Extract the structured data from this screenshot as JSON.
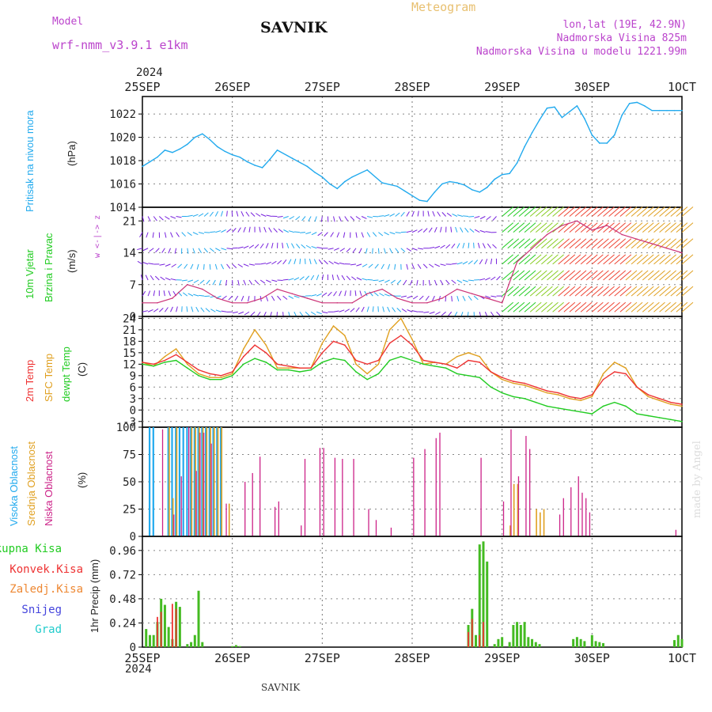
{
  "header": {
    "model_label": "Model",
    "model_name": "wrf-nmm_v3.9.1 e1km",
    "title": "SAVNIK",
    "chart_kind": "Meteogram",
    "lonlat": "lon,lat (19E, 42.9N)",
    "elevation": "Nadmorska Visina 825m",
    "model_elevation": "Nadmorska Visina u modelu 1221.99m",
    "year_top": "2024",
    "year_bottom": "2024",
    "footer_title": "SAVNIK",
    "credit": "made by Angel"
  },
  "colors": {
    "pressure": "#22aaee",
    "temp2m": "#ee3333",
    "sfc": "#e0a020",
    "dewpt": "#22cc22",
    "high": "#22aaee",
    "mid": "#e0a020",
    "low": "#cc2288",
    "total": "#44bb22",
    "convective": "#ee3333",
    "freezing": "#ee8833",
    "snow": "#4444dd",
    "hail": "#22cccc",
    "label_purple": "#bb44cc",
    "label_orange": "#e8c070",
    "label_blue": "#22aaee",
    "label_green": "#22cc22"
  },
  "x_axis": {
    "labels": [
      "25SEP",
      "26SEP",
      "27SEP",
      "28SEP",
      "29SEP",
      "30SEP",
      "1OCT"
    ],
    "range_hours": [
      0,
      144
    ]
  },
  "chart_data": [
    {
      "type": "line",
      "name_labels": [
        "Pritisak na nivou mora",
        "(hPa)"
      ],
      "ylim": [
        1014,
        1023.5
      ],
      "yticks": [
        1014,
        1016,
        1018,
        1020,
        1022
      ],
      "x": [
        0,
        2,
        4,
        6,
        8,
        10,
        12,
        14,
        16,
        18,
        20,
        22,
        24,
        26,
        28,
        30,
        32,
        34,
        36,
        40,
        44,
        46,
        48,
        50,
        52,
        54,
        56,
        60,
        64,
        68,
        70,
        72,
        74,
        76,
        78,
        80,
        82,
        84,
        86,
        88,
        90,
        92,
        94,
        96,
        98,
        100,
        102,
        104,
        106,
        108,
        110,
        112,
        114,
        116,
        118,
        120,
        122,
        124,
        126,
        128,
        130,
        132,
        134,
        136,
        138,
        140,
        142,
        144
      ],
      "series": [
        {
          "values": [
            1017.5,
            1017.9,
            1018.3,
            1018.9,
            1018.7,
            1019.0,
            1019.4,
            1020.0,
            1020.3,
            1019.8,
            1019.2,
            1018.8,
            1018.5,
            1018.3,
            1017.9,
            1017.6,
            1017.4,
            1018.1,
            1018.9,
            1018.2,
            1017.5,
            1017.0,
            1016.6,
            1016.0,
            1015.6,
            1016.2,
            1016.6,
            1017.2,
            1016.1,
            1015.8,
            1015.4,
            1015.0,
            1014.6,
            1014.5,
            1015.3,
            1016.0,
            1016.2,
            1016.1,
            1015.9,
            1015.5,
            1015.3,
            1015.7,
            1016.4,
            1016.8,
            1016.9,
            1017.8,
            1019.2,
            1020.4,
            1021.5,
            1022.5,
            1022.6,
            1021.7,
            1022.2,
            1022.7,
            1021.6,
            1020.2,
            1019.5,
            1019.5,
            1020.2,
            1021.9,
            1022.9,
            1023.0,
            1022.7,
            1022.3,
            1022.3,
            1022.3,
            1022.3,
            1022.3
          ]
        }
      ]
    },
    {
      "type": "line",
      "name_labels": [
        "10m Vjetar",
        "Brzina i Pravac",
        "(m/s)"
      ],
      "direction_legend": "w <-|-> z",
      "ylim": [
        0,
        24
      ],
      "yticks": [
        0,
        7,
        14,
        21
      ],
      "x": [
        0,
        4,
        8,
        12,
        16,
        20,
        24,
        28,
        32,
        36,
        40,
        44,
        48,
        52,
        56,
        60,
        64,
        68,
        72,
        76,
        80,
        84,
        88,
        92,
        96,
        100,
        104,
        108,
        112,
        116,
        120,
        124,
        128,
        132,
        136,
        140,
        144
      ],
      "series": [
        {
          "values": [
            3,
            3,
            4,
            7,
            6,
            4,
            3,
            3,
            4,
            6,
            5,
            4,
            3,
            3,
            3,
            5,
            6,
            4,
            3,
            3,
            4,
            6,
            5,
            4,
            3,
            12,
            15,
            18,
            20,
            21,
            19,
            20,
            18,
            17,
            16,
            15,
            14
          ]
        }
      ]
    },
    {
      "type": "line",
      "name_labels": [
        "2m Temp",
        "SFC Temp",
        "dewpt Temp",
        "(C)"
      ],
      "ylim": [
        -4.5,
        24.5
      ],
      "yticks": [
        -3,
        0,
        3,
        6,
        9,
        12,
        15,
        18,
        21,
        24
      ],
      "x": [
        0,
        3,
        6,
        9,
        12,
        15,
        18,
        21,
        24,
        27,
        30,
        33,
        36,
        39,
        42,
        45,
        48,
        51,
        54,
        57,
        60,
        63,
        66,
        69,
        72,
        75,
        78,
        81,
        84,
        87,
        90,
        93,
        96,
        99,
        102,
        105,
        108,
        111,
        114,
        117,
        120,
        123,
        126,
        129,
        132,
        135,
        138,
        141,
        144
      ],
      "series": [
        {
          "name": "2m Temp",
          "values": [
            12.5,
            12.0,
            13.0,
            14.5,
            12.5,
            10.5,
            9.5,
            9.0,
            10.0,
            14.0,
            17.0,
            15.0,
            12.0,
            11.5,
            11.0,
            11.0,
            15.0,
            18.0,
            17.0,
            13.0,
            12.0,
            13.0,
            17.5,
            19.5,
            17.0,
            13.0,
            12.5,
            12.0,
            11.0,
            13.0,
            12.5,
            10.0,
            8.5,
            7.5,
            7.0,
            6.0,
            5.0,
            4.5,
            3.5,
            3.0,
            4.0,
            8.0,
            10.0,
            9.5,
            6.0,
            4.0,
            3.0,
            2.0,
            1.5
          ]
        },
        {
          "name": "SFC Temp",
          "values": [
            12.5,
            11.5,
            14.0,
            16.0,
            12.0,
            9.5,
            8.5,
            8.5,
            9.5,
            16.0,
            21.0,
            17.0,
            11.0,
            11.0,
            11.0,
            11.0,
            17.5,
            22.0,
            19.5,
            12.0,
            9.5,
            12.0,
            21.0,
            24.0,
            18.5,
            12.0,
            12.5,
            12.0,
            14.0,
            15.0,
            14.0,
            10.0,
            8.0,
            7.0,
            6.5,
            5.5,
            4.5,
            4.0,
            3.0,
            2.5,
            3.5,
            9.5,
            12.5,
            11.0,
            6.0,
            3.5,
            2.5,
            1.5,
            1.0
          ]
        },
        {
          "name": "dewpt Temp",
          "values": [
            12.0,
            11.5,
            12.5,
            13.0,
            11.0,
            9.0,
            8.0,
            8.0,
            9.0,
            12.0,
            13.5,
            12.5,
            10.5,
            10.5,
            10.0,
            10.5,
            12.5,
            13.5,
            13.0,
            10.0,
            8.0,
            9.5,
            13.0,
            14.0,
            13.0,
            12.0,
            11.5,
            11.0,
            9.5,
            9.0,
            8.5,
            6.0,
            4.5,
            3.5,
            3.0,
            2.0,
            1.0,
            0.5,
            0.0,
            -0.5,
            -1.0,
            1.0,
            2.0,
            1.0,
            -1.0,
            -1.5,
            -2.0,
            -2.5,
            -3.0
          ]
        }
      ]
    },
    {
      "type": "bar",
      "name_labels": [
        "Visoka Oblacnost",
        "Srednja Oblacnost",
        "Niska Oblacnost",
        "(%)"
      ],
      "ylim": [
        0,
        100
      ],
      "yticks": [
        0,
        25,
        50,
        75,
        100
      ],
      "series": [
        {
          "name": "Visoka Oblacnost",
          "x": [
            2,
            3,
            7,
            8,
            9,
            10,
            11,
            12,
            13,
            14,
            15,
            16,
            17,
            18,
            19,
            20,
            21
          ],
          "values": [
            100,
            100,
            100,
            100,
            100,
            100,
            100,
            100,
            100,
            100,
            100,
            100,
            100,
            100,
            100,
            100,
            100
          ]
        },
        {
          "name": "Srednja Oblacnost",
          "x": [
            7,
            8,
            9,
            13,
            14,
            15,
            16,
            17,
            18,
            19,
            20,
            21,
            23,
            98,
            99,
            100,
            105,
            106,
            107
          ],
          "values": [
            100,
            35,
            100,
            100,
            100,
            100,
            100,
            100,
            100,
            100,
            100,
            100,
            30,
            10,
            48,
            48,
            25,
            22,
            25
          ]
        },
        {
          "name": "Niska Oblacnost",
          "x": [
            5,
            8,
            10,
            12,
            14,
            15,
            16,
            18,
            22,
            27,
            29,
            31,
            35,
            36,
            42,
            43,
            47,
            48,
            51,
            53,
            56,
            60,
            62,
            66,
            72,
            75,
            78,
            79,
            90,
            96,
            98,
            100,
            102,
            103,
            111,
            112,
            114,
            116,
            117,
            118,
            119,
            142
          ],
          "values": [
            98,
            20,
            55,
            100,
            60,
            95,
            95,
            85,
            30,
            50,
            58,
            73,
            27,
            32,
            10,
            71,
            81,
            81,
            72,
            71,
            71,
            25,
            15,
            8,
            72,
            80,
            90,
            95,
            72,
            32,
            98,
            55,
            92,
            80,
            20,
            35,
            45,
            55,
            40,
            35,
            22,
            6
          ]
        }
      ]
    },
    {
      "type": "bar",
      "name_labels": [
        "Ukupna Kisa",
        "Konvek.Kisa",
        "Zaledj.Kisa",
        "Snijeg",
        "Grad",
        "1hr Precip (mm)"
      ],
      "ylim": [
        0,
        1.1
      ],
      "yticks": [
        0,
        0.24,
        0.48,
        0.72,
        0.96
      ],
      "tick_labels": [
        "0",
        "0.24",
        "0.48",
        "0.72",
        "0.96"
      ],
      "series": [
        {
          "name": "Ukupna Kisa",
          "x": [
            1,
            2,
            3,
            4,
            5,
            6,
            7,
            8,
            9,
            10,
            12,
            13,
            14,
            15,
            16,
            24,
            25,
            26,
            87,
            88,
            89,
            90,
            91,
            92,
            94,
            95,
            96,
            98,
            99,
            100,
            101,
            102,
            103,
            104,
            105,
            106,
            115,
            116,
            117,
            118,
            120,
            121,
            122,
            123,
            142,
            143,
            144
          ],
          "values": [
            0.18,
            0.12,
            0.12,
            0.25,
            0.48,
            0.42,
            0.2,
            0.08,
            0.45,
            0.4,
            0.03,
            0.05,
            0.12,
            0.56,
            0.05,
            0.01,
            0.02,
            0.01,
            0.22,
            0.38,
            0.12,
            1.02,
            1.05,
            0.85,
            0.03,
            0.08,
            0.1,
            0.05,
            0.22,
            0.25,
            0.22,
            0.25,
            0.1,
            0.08,
            0.05,
            0.03,
            0.08,
            0.1,
            0.08,
            0.06,
            0.12,
            0.06,
            0.05,
            0.04,
            0.07,
            0.12,
            0.08
          ]
        },
        {
          "name": "Konvek.Kisa",
          "x": [
            4,
            5,
            8,
            9,
            87,
            88,
            90,
            91
          ],
          "values": [
            0.3,
            0.35,
            0.43,
            0.38,
            0.15,
            0.28,
            0.12,
            0.25
          ]
        },
        {
          "name": "Zaledj.Kisa",
          "x": [],
          "values": []
        },
        {
          "name": "Snijeg",
          "x": [],
          "values": []
        },
        {
          "name": "Grad",
          "x": [],
          "values": []
        }
      ]
    }
  ]
}
